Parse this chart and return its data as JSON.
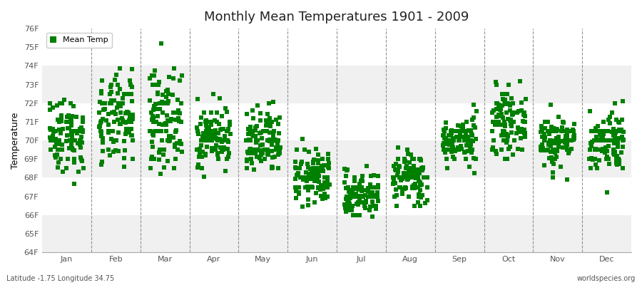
{
  "title": "Monthly Mean Temperatures 1901 - 2009",
  "ylabel": "Temperature",
  "xlabel_labels": [
    "Jan",
    "Feb",
    "Mar",
    "Apr",
    "May",
    "Jun",
    "Jul",
    "Aug",
    "Sep",
    "Oct",
    "Nov",
    "Dec"
  ],
  "ylim": [
    64,
    76
  ],
  "ytick_labels": [
    "64F",
    "65F",
    "66F",
    "67F",
    "68F",
    "69F",
    "70F",
    "71F",
    "72F",
    "73F",
    "74F",
    "75F",
    "76F"
  ],
  "ytick_values": [
    64,
    65,
    66,
    67,
    68,
    69,
    70,
    71,
    72,
    73,
    74,
    75,
    76
  ],
  "legend_label": "Mean Temp",
  "marker_color": "#008000",
  "marker": "s",
  "marker_size": 4,
  "bg_color": "#FFFFFF",
  "band_color_odd": "#F0F0F0",
  "band_color_even": "#FFFFFF",
  "footer_left": "Latitude -1.75 Longitude 34.75",
  "footer_right": "worldspecies.org",
  "month_means": [
    70.3,
    71.0,
    71.2,
    70.2,
    69.8,
    68.0,
    67.1,
    68.0,
    70.0,
    71.0,
    70.0,
    70.0
  ],
  "month_stds": [
    1.0,
    1.2,
    1.3,
    0.8,
    0.9,
    0.7,
    0.6,
    0.7,
    0.6,
    0.8,
    0.7,
    0.8
  ],
  "n_years": 109,
  "seed": 42
}
